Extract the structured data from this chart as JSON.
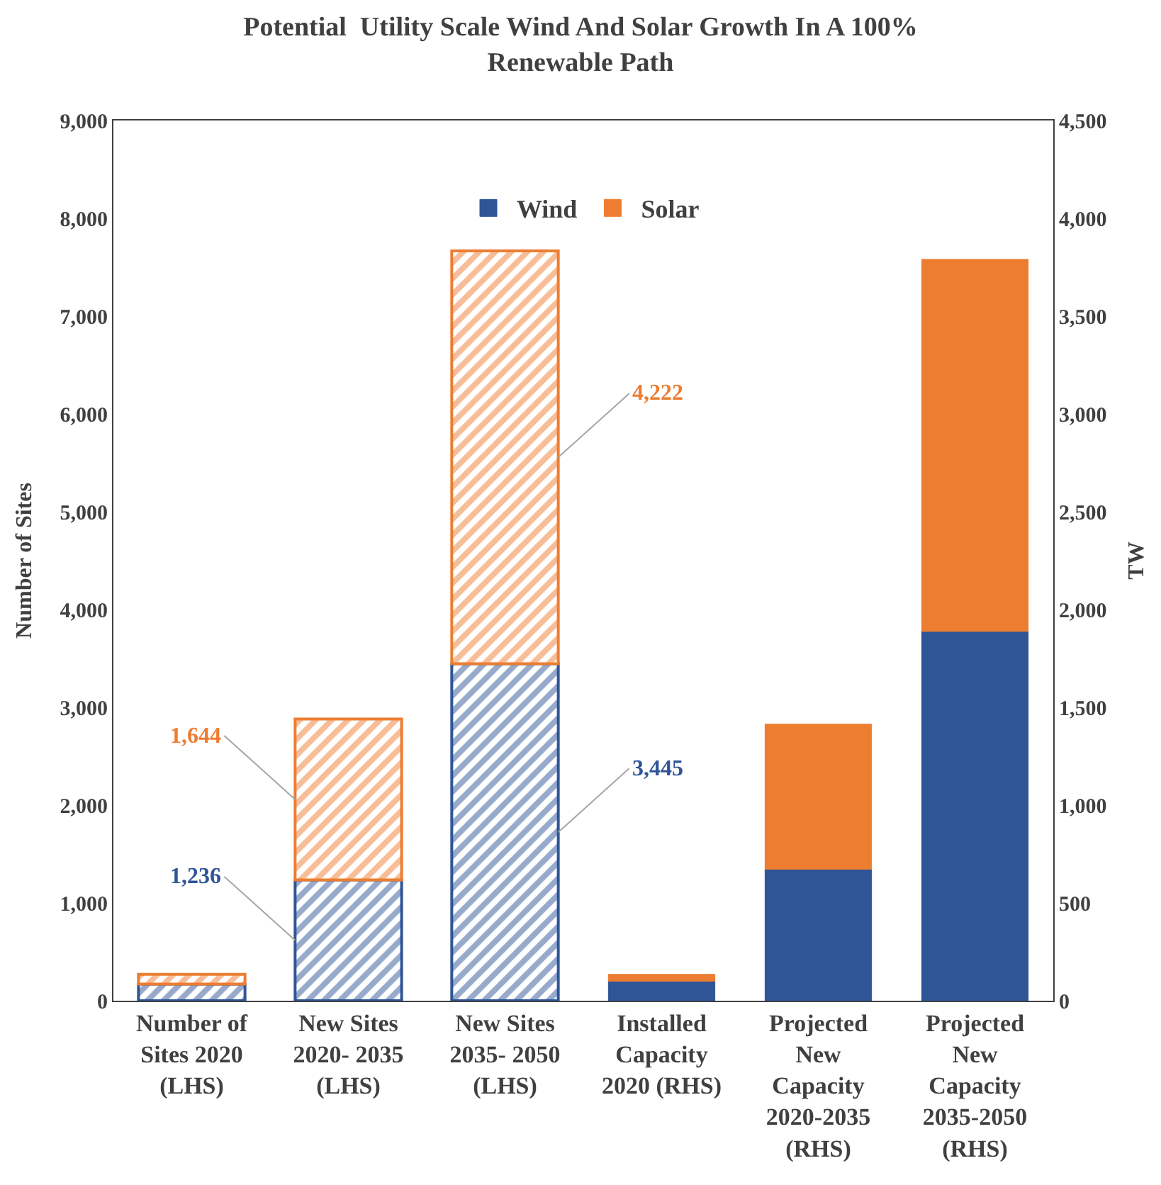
{
  "chart_data": {
    "type": "bar",
    "stacked": true,
    "title": "Potential  Utility Scale Wind And Solar Growth In A 100% Renewable Path",
    "ylabel": "Number of Sites",
    "y2label": "TW",
    "categories": [
      "Number of Sites 2020 (LHS)",
      "New Sites 2020- 2035 (LHS)",
      "New Sites 2035- 2050 (LHS)",
      "Installed Capacity 2020 (RHS)",
      "Projected New Capacity 2020-2035 (RHS)",
      "Projected New Capacity 2035-2050 (RHS)"
    ],
    "series": [
      {
        "color": "#2f5597",
        "values": [
          170,
          1236,
          3445,
          null,
          null,
          null
        ],
        "value_labels": [
          null,
          "1,236",
          "3,445",
          null,
          null,
          null
        ]
      },
      {
        "color": "#ed7d31",
        "values": [
          100,
          1644,
          4222,
          null,
          null,
          null
        ],
        "value_labels": [
          null,
          "1,644",
          "4,222",
          null,
          null,
          null
        ]
      },
      {
        "name": "Wind",
        "color": "#2f5597",
        "axis": "y2",
        "values": [
          null,
          null,
          null,
          100,
          672,
          1888
        ]
      },
      {
        "name": "Solar",
        "color": "#ed7d31",
        "axis": "y2",
        "values": [
          null,
          null,
          null,
          35,
          742,
          1902
        ]
      }
    ],
    "ylim": [
      0,
      9000
    ],
    "yticks": [
      {
        "value": 0,
        "label": "0"
      },
      {
        "value": 1000,
        "label": "1,000"
      },
      {
        "value": 2000,
        "label": "2,000"
      },
      {
        "value": 3000,
        "label": "3,000"
      },
      {
        "value": 4000,
        "label": "4,000"
      },
      {
        "value": 5000,
        "label": "5,000"
      },
      {
        "value": 6000,
        "label": "6,000"
      },
      {
        "value": 7000,
        "label": "7,000"
      },
      {
        "value": 8000,
        "label": "8,000"
      },
      {
        "value": 9000,
        "label": "9,000"
      }
    ],
    "y2lim": [
      0,
      4500
    ],
    "y2ticks": [
      0,
      500,
      {
        "value": 1000,
        "label": "1,000"
      },
      {
        "value": 1500,
        "label": "1,500"
      },
      {
        "value": 2000,
        "label": "2,000"
      },
      {
        "value": 2500,
        "label": "2,500"
      },
      {
        "value": 3000,
        "label": "3,000"
      },
      {
        "value": 3500,
        "label": "3,500"
      },
      {
        "value": 4000,
        "label": "4,000"
      },
      {
        "value": 4500,
        "label": "4,500"
      }
    ],
    "legend": "top"
  }
}
